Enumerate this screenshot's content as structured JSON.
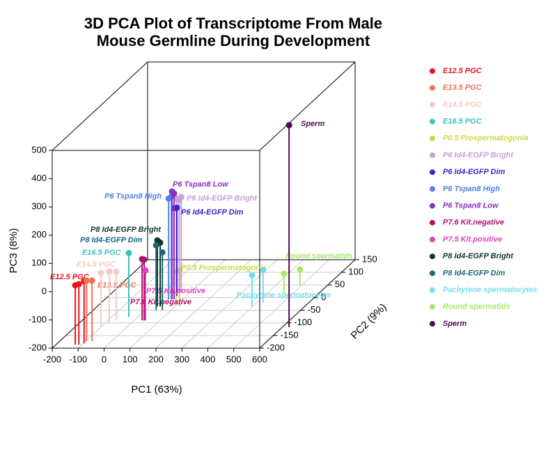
{
  "chart_data": {
    "type": "scatter3d",
    "title": [
      "3D PCA Plot of Transcriptome From Male",
      "Mouse Germline During Development"
    ],
    "xlabel": "PC1 (63%)",
    "ylabel": "PC2 (9%)",
    "zlabel": "PC3 (8%)",
    "xlim": [
      -200,
      600
    ],
    "ylim": [
      -200,
      150
    ],
    "zlim": [
      -200,
      500
    ],
    "xticks": [
      -200,
      -100,
      0,
      100,
      200,
      300,
      400,
      500,
      600
    ],
    "yticks": [
      -200,
      -150,
      -100,
      -50,
      0,
      50,
      100,
      150
    ],
    "zticks": [
      -200,
      -100,
      0,
      100,
      200,
      300,
      400,
      500
    ],
    "grid": true,
    "legend": "right",
    "series": [
      {
        "name": "E12.5 PGC",
        "color": "#e8141c",
        "x": [
          -126,
          -112,
          -97
        ],
        "y": [
          -186,
          -186,
          -181
        ],
        "z": [
          10,
          14,
          20
        ]
      },
      {
        "name": "E13.5 PGC",
        "color": "#f07050",
        "x": [
          -97,
          -76
        ],
        "y": [
          -172,
          -172
        ],
        "z": [
          14,
          14
        ]
      },
      {
        "name": "E14.5 PGC",
        "color": "#f8c8c8",
        "x": [
          -99,
          -81,
          -69
        ],
        "y": [
          -117,
          -104,
          -90
        ],
        "z": [
          -8,
          -15,
          -28
        ]
      },
      {
        "name": "E16.5 PGC",
        "color": "#40c0c0",
        "x": [
          -35
        ],
        "y": [
          -76
        ],
        "z": [
          26
        ]
      },
      {
        "name": "P0.5 Prospermatogonia",
        "color": "#d0d840",
        "x": [
          98,
          118
        ],
        "y": [
          -29,
          -35
        ],
        "z": [
          -82,
          -72
        ]
      },
      {
        "name": "P6 Id4-EGFP Bright",
        "color": "#c8a0d8",
        "x": [
          47,
          58,
          66
        ],
        "y": [
          20,
          20,
          20
        ],
        "z": [
          133,
          126,
          138
        ]
      },
      {
        "name": "P6 Id4-EGFP Dim",
        "color": "#4020d0",
        "x": [
          52,
          63
        ],
        "y": [
          7,
          7
        ],
        "z": [
          110,
          112
        ]
      },
      {
        "name": "P6 Tspan8 High",
        "color": "#5080e8",
        "x": [
          46,
          57
        ],
        "y": [
          -7,
          -7
        ],
        "z": [
          157,
          164
        ]
      },
      {
        "name": "P6 Tspan8 Low",
        "color": "#8830c0",
        "x": [
          59,
          67
        ],
        "y": [
          -7,
          -7
        ],
        "z": [
          182,
          175
        ]
      },
      {
        "name": "P7.6 Kit.negative",
        "color": "#b01070",
        "x": [
          31,
          39
        ],
        "y": [
          -90,
          -90
        ],
        "z": [
          17,
          15
        ]
      },
      {
        "name": "P7.5 Kit.positive",
        "color": "#e040c0",
        "x": [
          44
        ],
        "y": [
          -90
        ],
        "z": [
          -23
        ]
      },
      {
        "name": "P8 Id4-EGFP Bright",
        "color": "#103828",
        "x": [
          32,
          43
        ],
        "y": [
          -35,
          -35
        ],
        "z": [
          34,
          26
        ]
      },
      {
        "name": "P8 Id4-EGFP Dim",
        "color": "#186878",
        "x": [
          42,
          66
        ],
        "y": [
          -49,
          -49
        ],
        "z": [
          29,
          4
        ]
      },
      {
        "name": "Pachytene spermatocytes",
        "color": "#70e0f0",
        "x": [
          397,
          425
        ],
        "y": [
          -35,
          -21
        ],
        "z": [
          -89,
          -84
        ]
      },
      {
        "name": "Round spermatids",
        "color": "#a8e868",
        "x": [
          468,
          495
        ],
        "y": [
          15,
          48
        ],
        "z": [
          -129,
          -143
        ]
      },
      {
        "name": "Sperm",
        "color": "#500850",
        "x": [
          626
        ],
        "y": [
          -117
        ],
        "z": [
          515
        ]
      }
    ]
  }
}
